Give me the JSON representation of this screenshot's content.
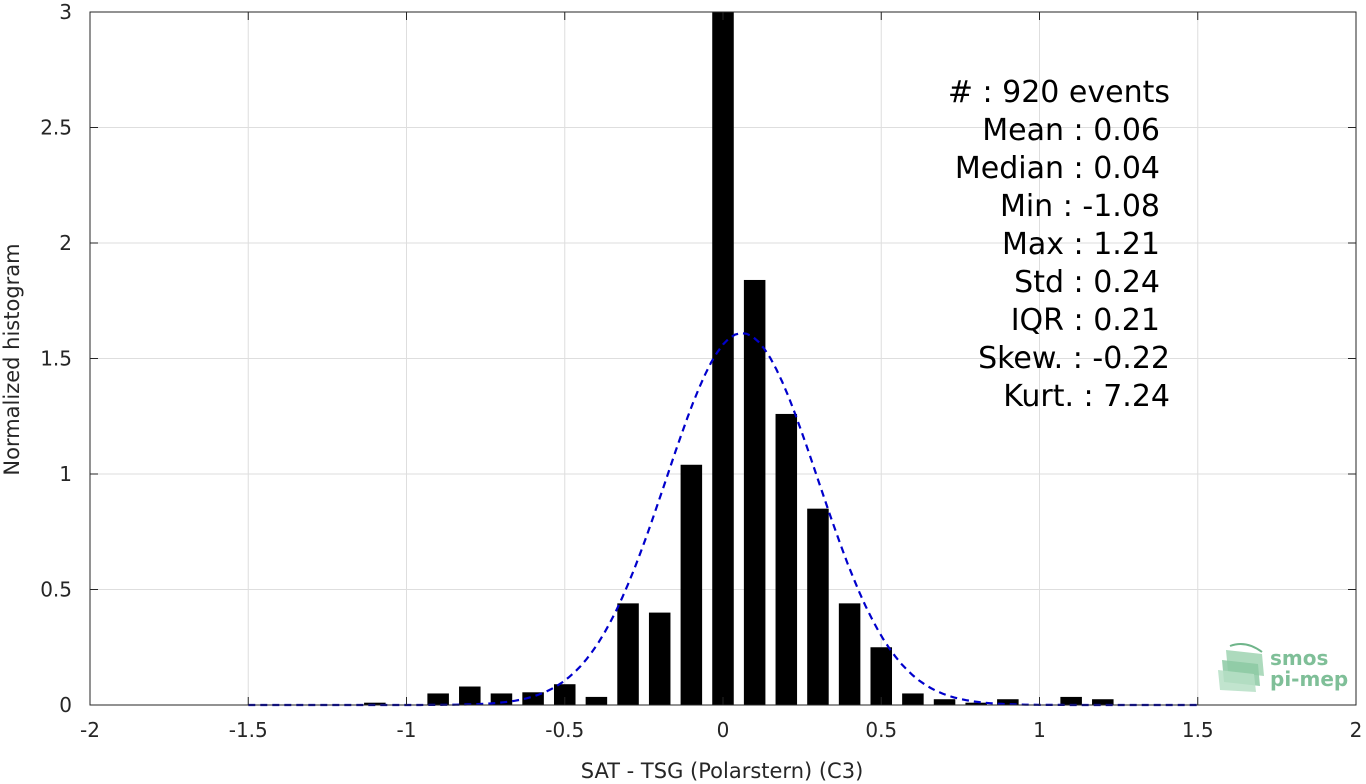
{
  "chart_data": {
    "type": "bar",
    "xlabel": "SAT - TSG (Polarstern) (C3)",
    "ylabel": "Normalized histogram",
    "xlim": [
      -2,
      2
    ],
    "ylim": [
      0,
      3
    ],
    "grid": true,
    "xticks": [
      "-2",
      "-1.5",
      "-1",
      "-0.5",
      "0",
      "0.5",
      "1",
      "1.5",
      "2"
    ],
    "yticks": [
      "0",
      "0.5",
      "1",
      "1.5",
      "2",
      "2.5",
      "3"
    ],
    "xtick_values": [
      -2,
      -1.5,
      -1,
      -0.5,
      0,
      0.5,
      1,
      1.5,
      2
    ],
    "ytick_values": [
      0,
      0.5,
      1,
      1.5,
      2,
      2.5,
      3
    ],
    "bin_width": 0.1,
    "bars": [
      {
        "x": -1.1,
        "y": 0.01
      },
      {
        "x": -0.9,
        "y": 0.05
      },
      {
        "x": -0.8,
        "y": 0.08
      },
      {
        "x": -0.7,
        "y": 0.05
      },
      {
        "x": -0.6,
        "y": 0.055
      },
      {
        "x": -0.5,
        "y": 0.09
      },
      {
        "x": -0.4,
        "y": 0.035
      },
      {
        "x": -0.3,
        "y": 0.44
      },
      {
        "x": -0.2,
        "y": 0.4
      },
      {
        "x": -0.1,
        "y": 1.04
      },
      {
        "x": 0.0,
        "y": 3.0
      },
      {
        "x": 0.1,
        "y": 1.84
      },
      {
        "x": 0.2,
        "y": 1.26
      },
      {
        "x": 0.3,
        "y": 0.85
      },
      {
        "x": 0.4,
        "y": 0.44
      },
      {
        "x": 0.5,
        "y": 0.25
      },
      {
        "x": 0.6,
        "y": 0.05
      },
      {
        "x": 0.7,
        "y": 0.025
      },
      {
        "x": 0.8,
        "y": 0.01
      },
      {
        "x": 0.9,
        "y": 0.025
      },
      {
        "x": 1.1,
        "y": 0.035
      },
      {
        "x": 1.2,
        "y": 0.025
      }
    ],
    "fit_curve": {
      "style": "dashed",
      "color": "#0000cc",
      "x_range": [
        -1.5,
        1.5
      ],
      "mean": 0.06,
      "std": 0.24,
      "peak": 1.61
    },
    "colors": {
      "bars": "#000000",
      "grid": "#dedede",
      "axis": "#262626"
    }
  },
  "stats": [
    "#  : 920 events",
    "Mean : 0.06",
    "Median : 0.04",
    "Min : -1.08",
    "Max : 1.21",
    "Std : 0.24",
    "IQR : 0.21",
    "Skew. : -0.22",
    "Kurt. : 7.24"
  ],
  "logo": {
    "line1": "smos",
    "line2": "pi-mep",
    "color": "#7fbf98"
  }
}
